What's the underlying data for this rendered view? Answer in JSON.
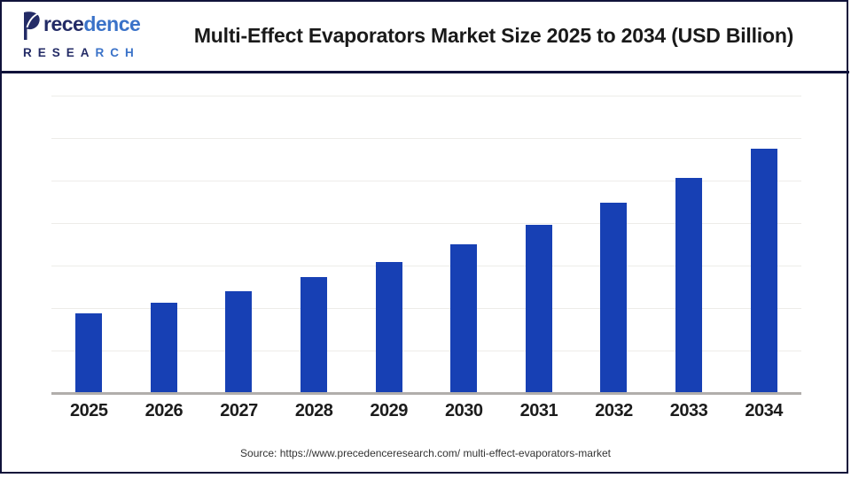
{
  "brand": {
    "name": "Precedence Research",
    "wordmark_dark": "rece",
    "wordmark_blue": "dence",
    "subtext_dark": "RESEA",
    "subtext_blue": "RCH",
    "dark_color": "#232B66",
    "blue_color": "#3A72C8"
  },
  "header": {
    "title": "Multi-Effect Evaporators Market Size 2025 to 2034 (USD Billion)"
  },
  "chart_data": {
    "type": "bar",
    "title": "Multi-Effect Evaporators Market Size 2025 to 2034 (USD Billion)",
    "categories": [
      "2025",
      "2026",
      "2027",
      "2028",
      "2029",
      "2030",
      "2031",
      "2032",
      "2033",
      "2034"
    ],
    "values": [
      1.87,
      2.12,
      2.4,
      2.72,
      3.08,
      3.49,
      3.95,
      4.47,
      5.07,
      5.74
    ],
    "unit": "USD Billion",
    "xlabel": "",
    "ylabel": "",
    "ylim": [
      0,
      7
    ],
    "gridline_count": 7,
    "grid": "horizontal-only",
    "legend": "none",
    "y_axis_tick_labels_shown": false,
    "value_labels_shown": false,
    "bar_color": "#1740B4",
    "gridline_color": "#EDECE9",
    "axis_color": "#B1AEAB"
  },
  "footer": {
    "source": "Source: https://www.precedenceresearch.com/ multi-effect-evaporators-market"
  }
}
